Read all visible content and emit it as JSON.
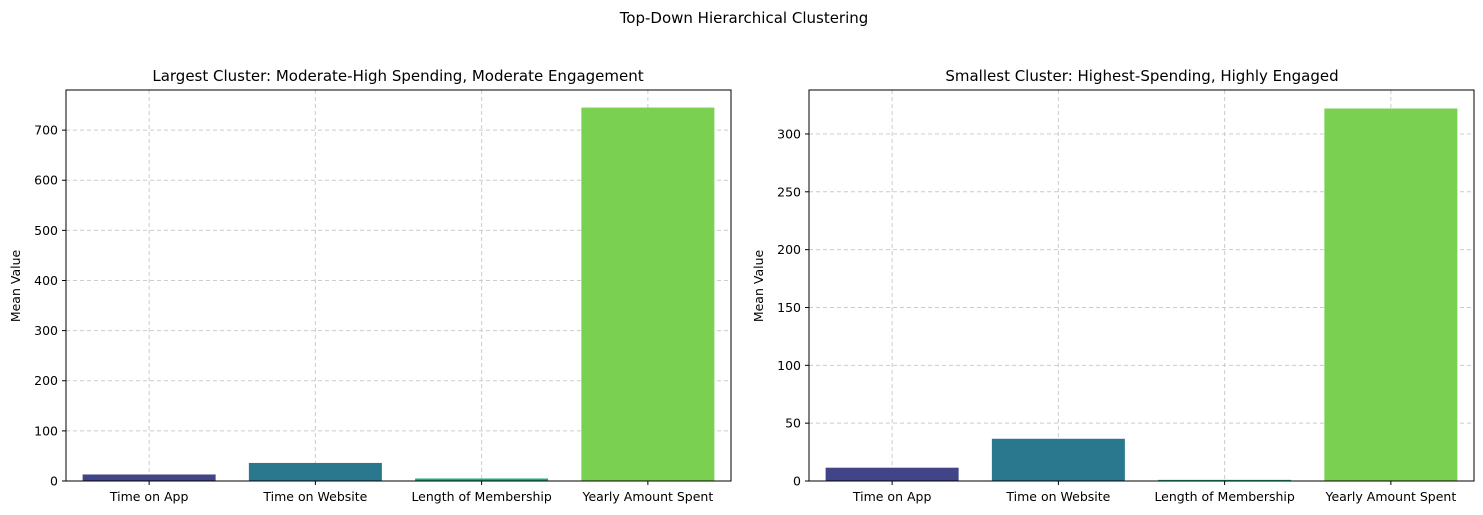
{
  "figure": {
    "suptitle": "Top-Down Hierarchical Clustering"
  },
  "chart_data": [
    {
      "type": "bar",
      "title": "Largest Cluster: Moderate-High Spending, Moderate Engagement",
      "xlabel": "",
      "ylabel": "Mean Value",
      "categories": [
        "Time on App",
        "Time on Website",
        "Length of Membership",
        "Yearly Amount Spent"
      ],
      "values": [
        13,
        36,
        5,
        745
      ],
      "ylim": [
        0,
        780
      ],
      "yticks": [
        0,
        100,
        200,
        300,
        400,
        500,
        600,
        700
      ],
      "grid": true,
      "colors": [
        "#414487",
        "#2a788e",
        "#22a884",
        "#7ad151"
      ]
    },
    {
      "type": "bar",
      "title": "Smallest Cluster: Highest-Spending, Highly Engaged",
      "xlabel": "",
      "ylabel": "Mean Value",
      "categories": [
        "Time on App",
        "Time on Website",
        "Length of Membership",
        "Yearly Amount Spent"
      ],
      "values": [
        11.5,
        36.5,
        1,
        322
      ],
      "ylim": [
        0,
        338
      ],
      "yticks": [
        0,
        50,
        100,
        150,
        200,
        250,
        300
      ],
      "grid": true,
      "colors": [
        "#414487",
        "#2a788e",
        "#22a884",
        "#7ad151"
      ]
    }
  ]
}
